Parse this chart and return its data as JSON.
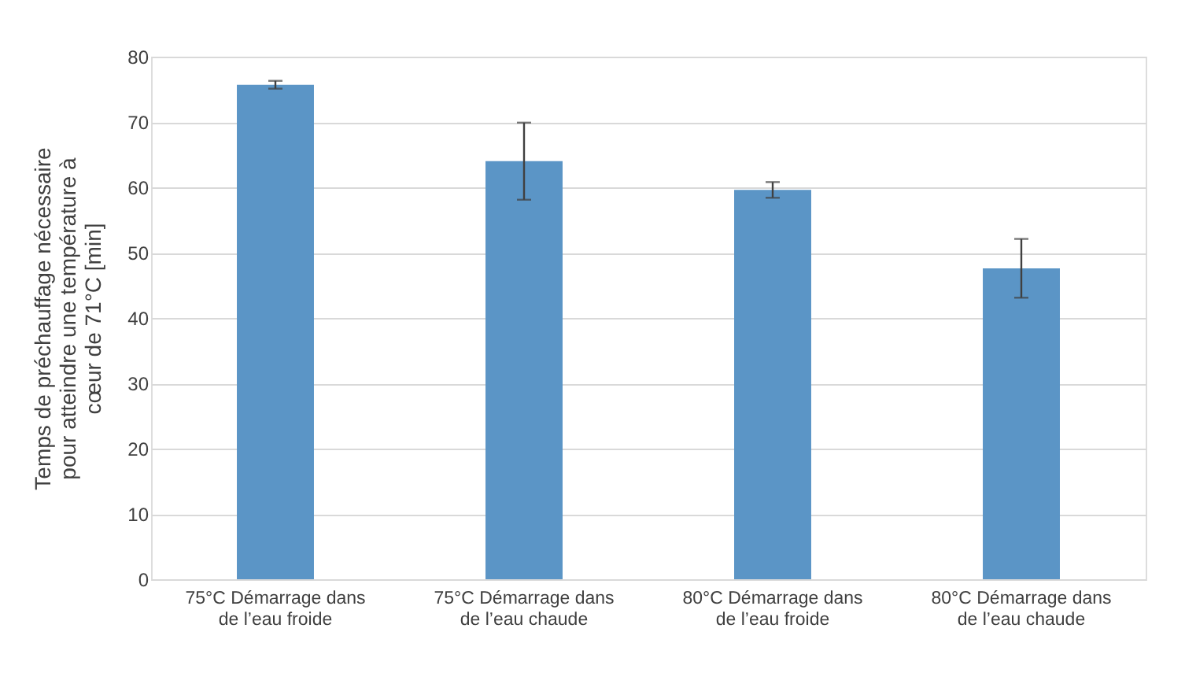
{
  "chart_data": {
    "type": "bar",
    "categories": [
      "75°C Démarrage dans\nde l’eau froide",
      "75°C Démarrage dans\nde l’eau chaude",
      "80°C Démarrage dans\nde l’eau froide",
      "80°C Démarrage dans\nde l’eau chaude"
    ],
    "values": [
      75.7,
      64.0,
      59.6,
      47.6
    ],
    "errors": [
      0.6,
      5.9,
      1.2,
      4.5
    ],
    "color": "#5b95c6",
    "ylabel": "Temps de préchauffage nécessaire\npour atteindre une température à\ncœur de 71°C [min]",
    "ylim": [
      0,
      80
    ],
    "yticks": [
      0,
      10,
      20,
      30,
      40,
      50,
      60,
      70,
      80
    ],
    "grid": "y"
  }
}
